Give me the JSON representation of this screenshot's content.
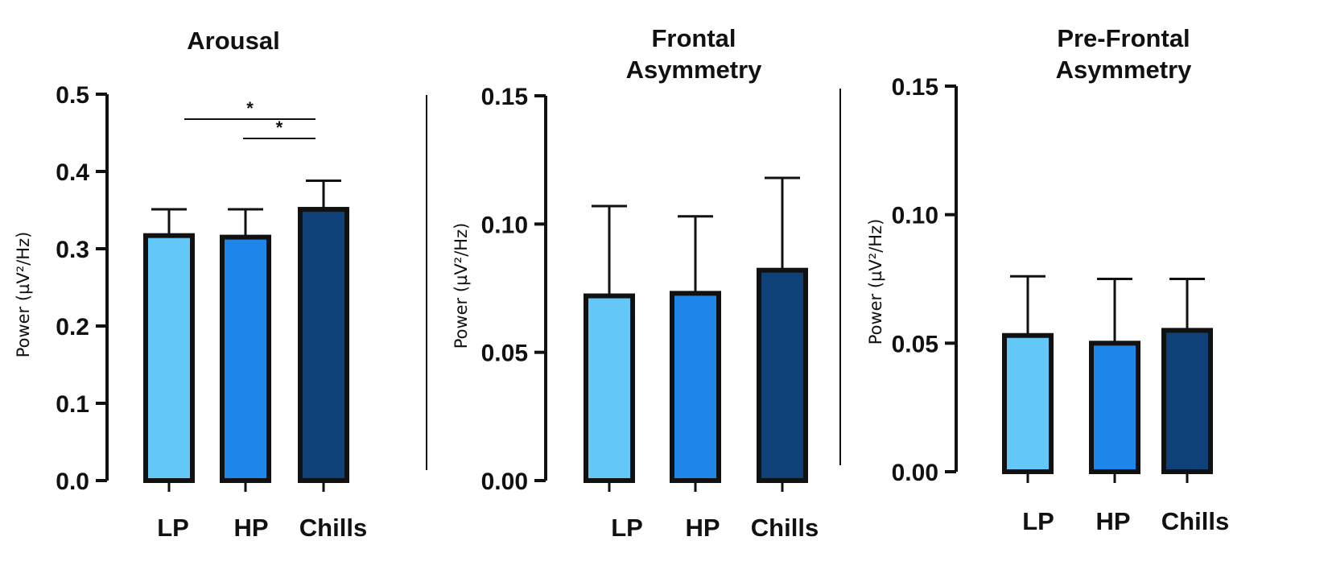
{
  "colors": {
    "LP": "#63c7f7",
    "HP": "#1e86e8",
    "Chills": "#0d4178",
    "stroke": "#111111"
  },
  "chart_data": [
    {
      "type": "bar",
      "title": "Arousal",
      "ylabel": "Power (µV²/Hz)",
      "categories": [
        "LP",
        "HP",
        "Chills"
      ],
      "values": [
        0.317,
        0.315,
        0.351
      ],
      "errors": [
        0.034,
        0.036,
        0.037
      ],
      "ylim": [
        0,
        0.5
      ],
      "yticks": [
        "0.0",
        "0.1",
        "0.2",
        "0.3",
        "0.4",
        "0.5"
      ],
      "significance": [
        {
          "from": "LP",
          "to": "Chills",
          "label": "*"
        },
        {
          "from": "HP",
          "to": "Chills",
          "label": "*"
        }
      ]
    },
    {
      "type": "bar",
      "title": "Frontal Asymmetry",
      "ylabel": "Power (µV²/Hz)",
      "categories": [
        "LP",
        "HP",
        "Chills"
      ],
      "values": [
        0.072,
        0.073,
        0.082
      ],
      "errors": [
        0.035,
        0.03,
        0.036
      ],
      "ylim": [
        0,
        0.15
      ],
      "yticks": [
        "0.00",
        "0.05",
        "0.10",
        "0.15"
      ],
      "significance": []
    },
    {
      "type": "bar",
      "title": "Pre-Frontal Asymmetry",
      "ylabel": "Power (µV²/Hz)",
      "categories": [
        "LP",
        "HP",
        "Chills"
      ],
      "values": [
        0.053,
        0.05,
        0.055
      ],
      "errors": [
        0.023,
        0.025,
        0.02
      ],
      "ylim": [
        0,
        0.15
      ],
      "yticks": [
        "0.00",
        "0.05",
        "0.10",
        "0.15"
      ],
      "significance": []
    }
  ]
}
